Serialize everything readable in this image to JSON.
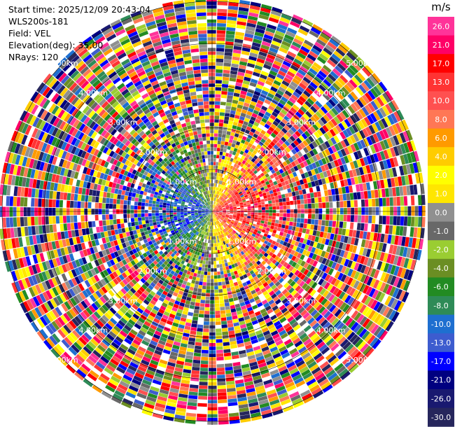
{
  "info": {
    "start_time": "Start time: 2025/12/09 20:43:04",
    "site": "WLS200s-181",
    "field": "Field: VEL",
    "elevation": "Elevation(deg): 35.00",
    "nrays": "NRays: 120"
  },
  "range_labels": [
    "1.00km",
    "2.00km",
    "3.00km",
    "4.00km",
    "5.00km"
  ],
  "colorbar": {
    "unit": "m/s",
    "ticks": [
      "26.0",
      "21.0",
      "17.0",
      "13.0",
      "10.0",
      "8.0",
      "6.0",
      "4.0",
      "2.0",
      "1.0",
      "0.0",
      "-1.0",
      "-2.0",
      "-4.0",
      "-6.0",
      "-8.0",
      "-10.0",
      "-13.0",
      "-17.0",
      "-21.0",
      "-26.0",
      "-30.0"
    ],
    "colors": [
      "#ff3399",
      "#ff0066",
      "#ff0000",
      "#ff3333",
      "#ff5050",
      "#ff7755",
      "#ff9a00",
      "#ffcc00",
      "#ffff00",
      "#ffe600",
      "#909090",
      "#686868",
      "#9acd32",
      "#6b8e23",
      "#228b22",
      "#2e8b57",
      "#1e6fd0",
      "#3d5ccf",
      "#0000ff",
      "#000080",
      "#191970",
      "#26265c"
    ]
  }
}
